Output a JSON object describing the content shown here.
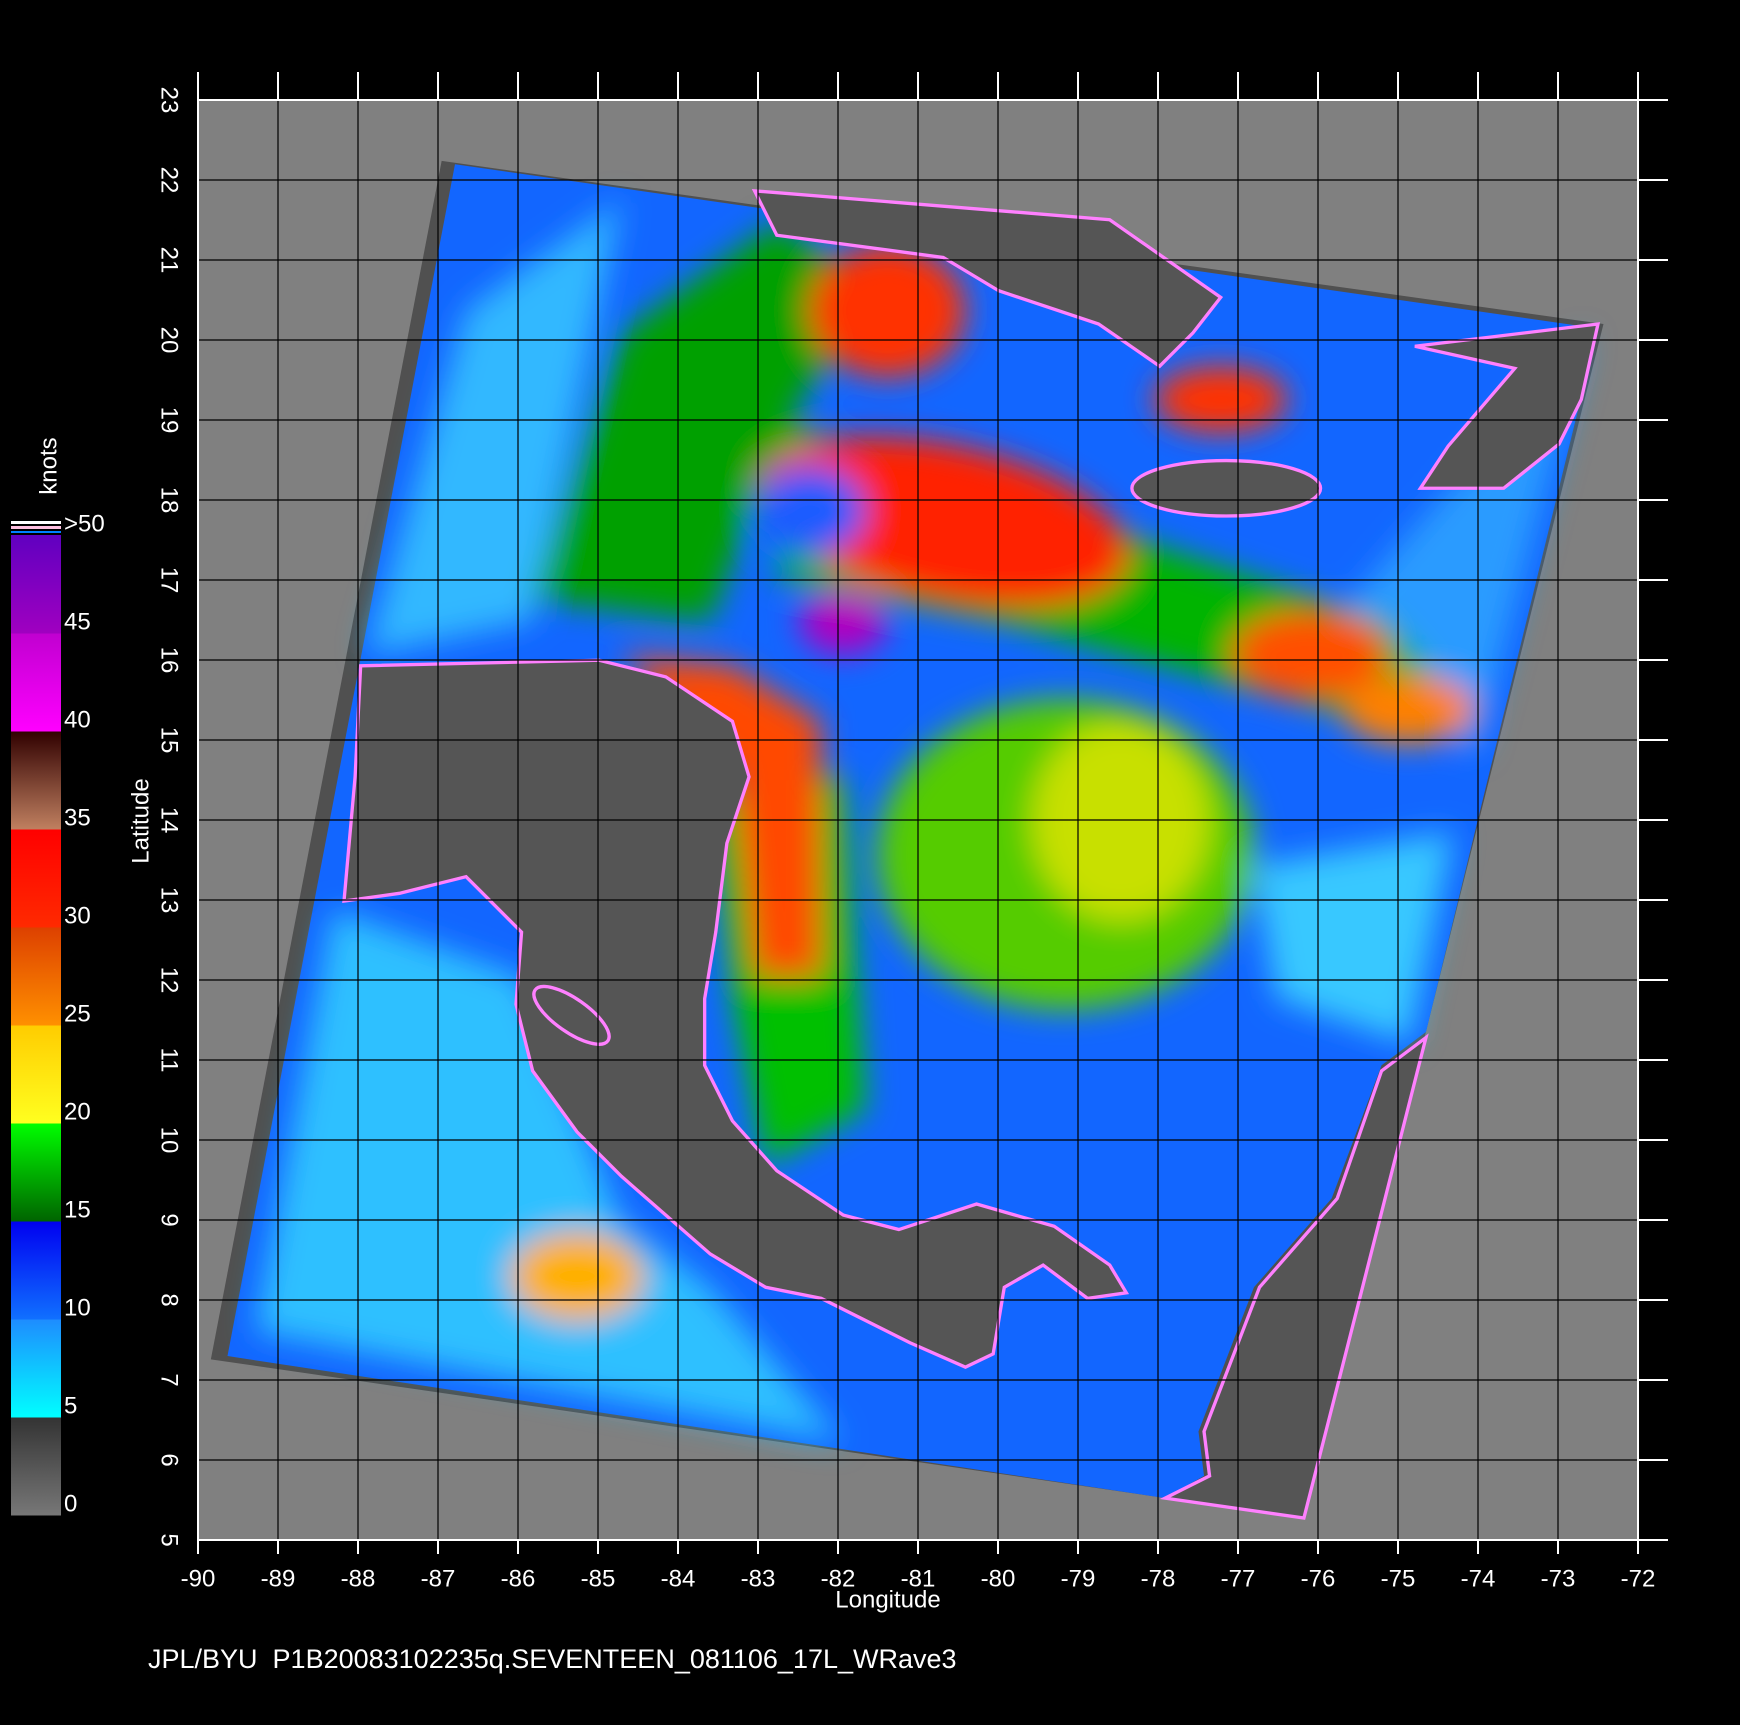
{
  "chart_data": {
    "type": "map",
    "footer": "JPL/BYU  P1B20083102235q.SEVENTEEN_081106_17L_WRave3",
    "xlabel": "Longitude",
    "ylabel": "Latitude",
    "xlim": [
      -90,
      -72
    ],
    "ylim": [
      5,
      23
    ],
    "xticks": [
      -90,
      -89,
      -88,
      -87,
      -86,
      -85,
      -84,
      -83,
      -82,
      -81,
      -80,
      -79,
      -78,
      -77,
      -76,
      -75,
      -74,
      -73,
      -72
    ],
    "yticks": [
      5,
      6,
      7,
      8,
      9,
      10,
      11,
      12,
      13,
      14,
      15,
      16,
      17,
      18,
      19,
      20,
      21,
      22,
      23
    ],
    "grid": true,
    "colorbar": {
      "label": "knots",
      "lim": [
        0,
        50
      ],
      "ticks": [
        0,
        5,
        10,
        15,
        20,
        25,
        30,
        35,
        40,
        45,
        {
          "value": 50,
          "label": ">50"
        }
      ],
      "colors": [
        [
          "#777777",
          "#333333"
        ],
        [
          "#00ffff",
          "#1e8cff"
        ],
        [
          "#1070ff",
          "#0000f0"
        ],
        [
          "#006400",
          "#00ff00"
        ],
        [
          "#ffff20",
          "#ffcc00"
        ],
        [
          "#ff9000",
          "#dd4000"
        ],
        [
          "#ff2a00",
          "#ff0000"
        ],
        [
          "#c08060",
          "#300000"
        ],
        [
          "#ff00ff",
          "#c000d0"
        ],
        [
          "#a000c0",
          "#6000c0"
        ]
      ]
    }
  }
}
